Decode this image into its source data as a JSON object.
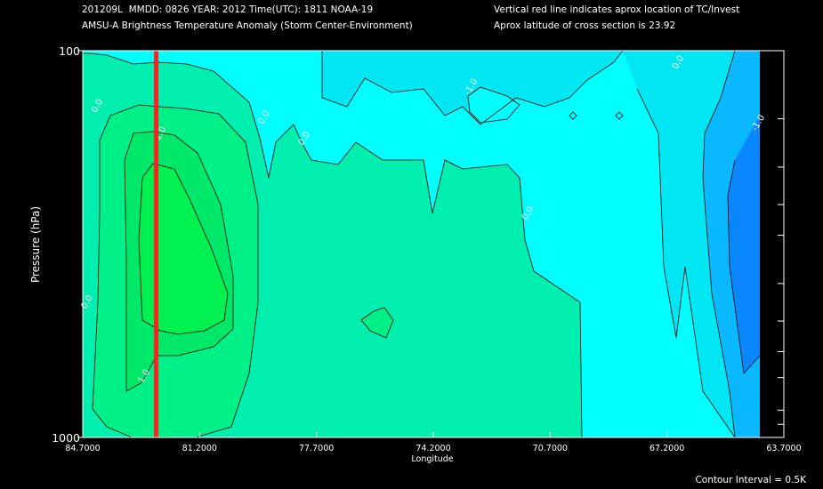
{
  "header": {
    "line1": "201209L  MMDD: 0826 YEAR: 2012 Time(UTC): 1811 NOAA-19",
    "line2": "AMSU-A Brightness Temperature Anomaly (Storm Center-Environment)",
    "line3": "Vertical red line indicates aprox location of TC/Invest",
    "line4": "Aprox latitude of cross section is 23.92"
  },
  "footer": {
    "contour_interval": "Contour Interval = 0.5K"
  },
  "colors": {
    "background": "#000000",
    "axes": "#ffffff",
    "storm_line": "#ff2020",
    "bands": {
      "lt_-1.5": "#0a86ff",
      "-1.5_-1.0": "#0ab8ff",
      "-1.0_-0.5": "#00e7f3",
      "-0.5_0.0": "#00ffff",
      "0.0_0.5": "#00eeae",
      "0.5_1.0": "#00f088",
      "1.0_1.5": "#00e86a",
      "gt_1.5": "#00f050"
    }
  },
  "chart_data": {
    "type": "contour",
    "title": "AMSU-A Brightness Temperature Anomaly (Storm Center-Environment)",
    "xlabel": "Longitude",
    "ylabel": "Pressure (hPa)",
    "xlim": [
      84.7,
      63.7
    ],
    "ylim": [
      1000,
      100
    ],
    "y_scale": "log",
    "x_ticks": [
      "84.7000",
      "81.2000",
      "77.7000",
      "74.2000",
      "70.7000",
      "67.2000",
      "63.7000"
    ],
    "x_tick_values": [
      84.7,
      81.2,
      77.7,
      74.2,
      70.7,
      67.2,
      63.7
    ],
    "y_ticks": [
      "100",
      "1000"
    ],
    "y_tick_values": [
      100,
      1000
    ],
    "y_minor_ticks": [
      150,
      200,
      250,
      300,
      400,
      500,
      600,
      700,
      850,
      925
    ],
    "storm_longitude": 82.5,
    "contour_interval": 0.5,
    "contour_labels": [
      {
        "text": "0.0",
        "lon": 84.2,
        "p": 140
      },
      {
        "text": "0.0",
        "lon": 79.2,
        "p": 150
      },
      {
        "text": "0.0",
        "lon": 78.0,
        "p": 170
      },
      {
        "text": "1.0",
        "lon": 82.3,
        "p": 165
      },
      {
        "text": "-1.0",
        "lon": 73.0,
        "p": 125
      },
      {
        "text": "0.0",
        "lon": 71.3,
        "p": 265
      },
      {
        "text": "0.0",
        "lon": 84.5,
        "p": 450
      },
      {
        "text": "1.0",
        "lon": 82.8,
        "p": 700
      },
      {
        "text": "0.0",
        "lon": 66.8,
        "p": 108
      },
      {
        "text": "-1.0",
        "lon": 64.4,
        "p": 155
      }
    ]
  }
}
